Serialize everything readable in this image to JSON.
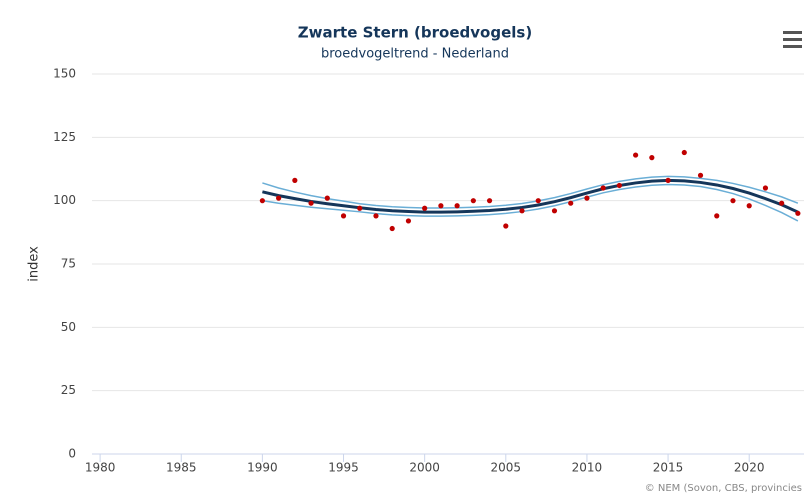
{
  "chart_data": {
    "type": "line",
    "title": "Zwarte Stern (broedvogels)",
    "subtitle": "broedvogeltrend - Nederland",
    "y_label": "index",
    "credits": "© NEM (Sovon, CBS, provincies",
    "x": [
      1990,
      1991,
      1992,
      1993,
      1994,
      1995,
      1996,
      1997,
      1998,
      1999,
      2000,
      2001,
      2002,
      2003,
      2004,
      2005,
      2006,
      2007,
      2008,
      2009,
      2010,
      2011,
      2012,
      2013,
      2014,
      2015,
      2016,
      2017,
      2018,
      2019,
      2020,
      2021,
      2022,
      2023
    ],
    "series": [
      {
        "color": "#6aaed6",
        "width": 1.5,
        "values": [
          107,
          105,
          103.4,
          102,
          100.8,
          99.8,
          98.8,
          98.1,
          97.6,
          97.3,
          97.1,
          97.1,
          97.2,
          97.4,
          97.7,
          98.2,
          98.9,
          99.9,
          101.2,
          102.8,
          104.6,
          106.3,
          107.6,
          108.6,
          109.3,
          109.6,
          109.4,
          108.8,
          108,
          106.8,
          105.3,
          103.5,
          101.5,
          99
        ]
      },
      {
        "color": "#6aaed6",
        "width": 1.5,
        "values": [
          100,
          99,
          98.2,
          97.4,
          96.8,
          96.2,
          95.6,
          94.9,
          94.4,
          94.1,
          93.9,
          93.9,
          94,
          94.2,
          94.5,
          95,
          95.7,
          96.7,
          98,
          99.6,
          101.4,
          103.1,
          104.4,
          105.4,
          106.1,
          106.4,
          106.2,
          105.6,
          104.4,
          102.8,
          100.7,
          98.1,
          95.3,
          92
        ]
      },
      {
        "color": "#15365a",
        "width": 3,
        "values": [
          103.5,
          102,
          100.8,
          99.7,
          98.8,
          98,
          97.2,
          96.5,
          96,
          95.7,
          95.5,
          95.5,
          95.6,
          95.8,
          96.1,
          96.6,
          97.3,
          98.3,
          99.6,
          101.2,
          103,
          104.7,
          106,
          107,
          107.7,
          108,
          107.8,
          107.2,
          106.2,
          104.8,
          103,
          100.8,
          98.4,
          95.5
        ]
      },
      {
        "color": "#c00000",
        "markers": true,
        "values": [
          100,
          101,
          108,
          99,
          101,
          94,
          97,
          94,
          89,
          92,
          97,
          98,
          98,
          100,
          100,
          90,
          96,
          100,
          96,
          99,
          101,
          105,
          106,
          118,
          117,
          108,
          119,
          110,
          94,
          100,
          98,
          105,
          99,
          95
        ]
      }
    ],
    "xlim": [
      1979.5,
      2023.5
    ],
    "xticks": [
      1980,
      1985,
      1990,
      1995,
      2000,
      2005,
      2010,
      2015,
      2020
    ],
    "ylim": [
      0,
      150
    ],
    "yticks": [
      0,
      25,
      50,
      75,
      100,
      125,
      150
    ],
    "grid": true
  }
}
